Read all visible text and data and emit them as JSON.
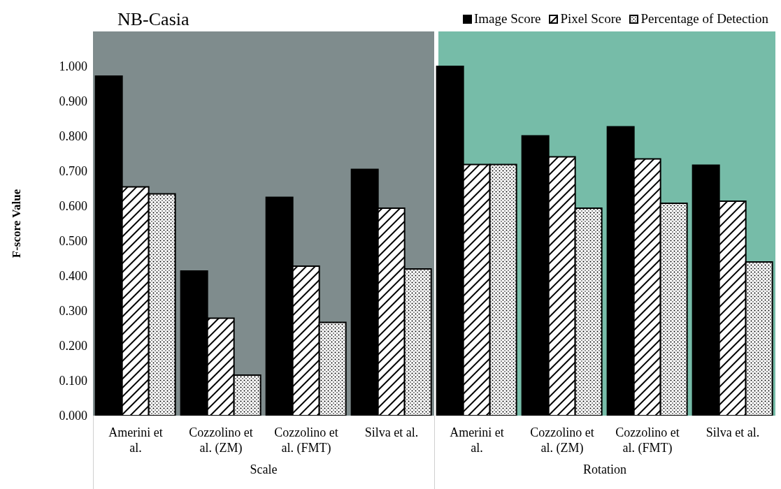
{
  "chart_data": {
    "type": "bar",
    "title": "NB-Casia",
    "ylabel": "F-score Value",
    "categories": [
      "Amerini et al.",
      "Cozzolino et al. (ZM)",
      "Cozzolino et al. (FMT)",
      "Silva et al.",
      "Amerini et al.",
      "Cozzolino et al. (ZM)",
      "Cozzolino et al. (FMT)",
      "Silva et al."
    ],
    "series": [
      {
        "name": "Image Score",
        "color": "#000000",
        "values": [
          0.972,
          0.414,
          0.625,
          0.705,
          1.0,
          0.801,
          0.827,
          0.717
        ]
      },
      {
        "name": "Pixel Score",
        "color": "#000000",
        "values": [
          0.655,
          0.279,
          0.428,
          0.594,
          0.719,
          0.741,
          0.735,
          0.614
        ]
      },
      {
        "name": "Percentage of Detection",
        "color": "#000000",
        "values": [
          0.635,
          0.116,
          0.267,
          0.42,
          0.719,
          0.594,
          0.608,
          0.44
        ]
      }
    ],
    "annotations": [
      "Scale",
      "Rotation"
    ],
    "ylim": [
      0,
      1.1
    ],
    "yticks": [
      {
        "value": 0,
        "label": "0.000"
      },
      {
        "value": 0.1,
        "label": "0.100"
      },
      {
        "value": 0.2,
        "label": "0.200"
      },
      {
        "value": 0.3,
        "label": "0.300"
      },
      {
        "value": 0.4,
        "label": "0.400"
      },
      {
        "value": 0.5,
        "label": "0.500"
      },
      {
        "value": 0.6,
        "label": "0.600"
      },
      {
        "value": 0.7,
        "label": "0.700"
      },
      {
        "value": 0.8,
        "label": "0.800"
      },
      {
        "value": 0.9,
        "label": "0.900"
      },
      {
        "value": 1,
        "label": "1.000"
      }
    ],
    "grid": false,
    "legend": "top right"
  }
}
